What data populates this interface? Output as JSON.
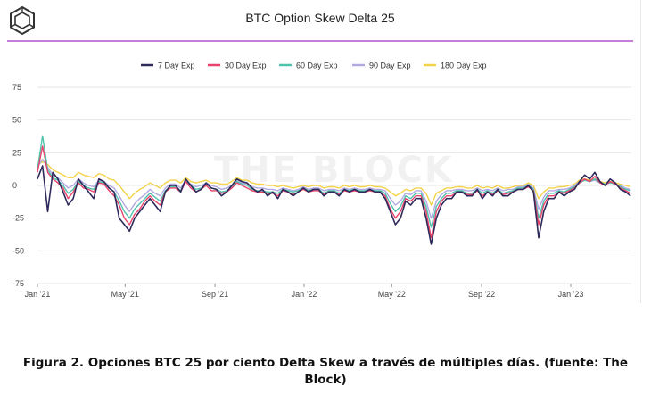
{
  "chart_data": {
    "type": "line",
    "title": "BTC Option Skew Delta 25",
    "watermark": "THE BLOCK",
    "xlabel": "",
    "ylabel": "",
    "ylim": [
      -75,
      75
    ],
    "yticks": [
      75,
      50,
      25,
      0,
      -25,
      -50,
      -75
    ],
    "x_ticks": [
      {
        "label": "Jan '21",
        "date": "2021-01-01"
      },
      {
        "label": "May '21",
        "date": "2021-05-01"
      },
      {
        "label": "Sep '21",
        "date": "2021-09-01"
      },
      {
        "label": "Jan '22",
        "date": "2022-01-01"
      },
      {
        "label": "May '22",
        "date": "2022-05-01"
      },
      {
        "label": "Sep '22",
        "date": "2022-09-01"
      },
      {
        "label": "Jan '23",
        "date": "2023-01-01"
      }
    ],
    "xlim": [
      "2021-01-01",
      "2023-03-25"
    ],
    "grid": true,
    "legend_position": "top",
    "x_dates": [
      "2021-01-01",
      "2021-01-08",
      "2021-01-15",
      "2021-01-22",
      "2021-01-29",
      "2021-02-05",
      "2021-02-12",
      "2021-02-19",
      "2021-02-26",
      "2021-03-05",
      "2021-03-12",
      "2021-03-19",
      "2021-03-26",
      "2021-04-02",
      "2021-04-09",
      "2021-04-16",
      "2021-04-23",
      "2021-04-30",
      "2021-05-07",
      "2021-05-14",
      "2021-05-21",
      "2021-05-28",
      "2021-06-04",
      "2021-06-11",
      "2021-06-18",
      "2021-06-25",
      "2021-07-02",
      "2021-07-09",
      "2021-07-16",
      "2021-07-23",
      "2021-07-30",
      "2021-08-06",
      "2021-08-13",
      "2021-08-20",
      "2021-08-27",
      "2021-09-03",
      "2021-09-10",
      "2021-09-17",
      "2021-09-24",
      "2021-10-01",
      "2021-10-08",
      "2021-10-15",
      "2021-10-22",
      "2021-10-29",
      "2021-11-05",
      "2021-11-12",
      "2021-11-19",
      "2021-11-26",
      "2021-12-03",
      "2021-12-10",
      "2021-12-17",
      "2021-12-24",
      "2021-12-31",
      "2022-01-07",
      "2022-01-14",
      "2022-01-21",
      "2022-01-28",
      "2022-02-04",
      "2022-02-11",
      "2022-02-18",
      "2022-02-25",
      "2022-03-04",
      "2022-03-11",
      "2022-03-18",
      "2022-03-25",
      "2022-04-01",
      "2022-04-08",
      "2022-04-15",
      "2022-04-22",
      "2022-04-29",
      "2022-05-06",
      "2022-05-13",
      "2022-05-20",
      "2022-05-27",
      "2022-06-03",
      "2022-06-10",
      "2022-06-17",
      "2022-06-24",
      "2022-07-01",
      "2022-07-08",
      "2022-07-15",
      "2022-07-22",
      "2022-07-29",
      "2022-08-05",
      "2022-08-12",
      "2022-08-19",
      "2022-08-26",
      "2022-09-02",
      "2022-09-09",
      "2022-09-16",
      "2022-09-23",
      "2022-09-30",
      "2022-10-07",
      "2022-10-14",
      "2022-10-21",
      "2022-10-28",
      "2022-11-04",
      "2022-11-11",
      "2022-11-18",
      "2022-11-25",
      "2022-12-02",
      "2022-12-09",
      "2022-12-16",
      "2022-12-23",
      "2022-12-30",
      "2023-01-06",
      "2023-01-13",
      "2023-01-20",
      "2023-01-27",
      "2023-02-03",
      "2023-02-10",
      "2023-02-17",
      "2023-02-24",
      "2023-03-03",
      "2023-03-10",
      "2023-03-17",
      "2023-03-24"
    ],
    "series": [
      {
        "name": "7 Day Exp",
        "color": "#2e2a5a",
        "values": [
          5,
          15,
          -20,
          10,
          5,
          -5,
          -15,
          -10,
          5,
          0,
          -5,
          -10,
          5,
          3,
          -2,
          -5,
          -25,
          -30,
          -35,
          -25,
          -20,
          -15,
          -10,
          -15,
          -20,
          -5,
          0,
          0,
          -5,
          5,
          0,
          -5,
          -3,
          2,
          -2,
          -3,
          -8,
          -5,
          0,
          5,
          3,
          2,
          -2,
          -5,
          -3,
          -8,
          -5,
          -10,
          -3,
          -5,
          -8,
          -5,
          -2,
          -5,
          -3,
          -3,
          -8,
          -5,
          -5,
          -8,
          -3,
          -5,
          -3,
          -5,
          -5,
          -3,
          -5,
          -5,
          -10,
          -20,
          -30,
          -25,
          -12,
          -15,
          -10,
          -10,
          -25,
          -45,
          -25,
          -15,
          -10,
          -10,
          -5,
          -5,
          -8,
          -8,
          -3,
          -10,
          -5,
          -8,
          -3,
          -8,
          -8,
          -5,
          -3,
          -3,
          0,
          -5,
          -40,
          -20,
          -10,
          -10,
          -5,
          -8,
          -5,
          -3,
          3,
          8,
          5,
          10,
          3,
          0,
          5,
          2,
          -3,
          -5,
          -8
        ]
      },
      {
        "name": "30 Day Exp",
        "color": "#e8436c",
        "values": [
          10,
          30,
          10,
          5,
          2,
          -2,
          -10,
          -5,
          2,
          -2,
          -3,
          -5,
          2,
          1,
          -4,
          -8,
          -15,
          -25,
          -30,
          -22,
          -18,
          -12,
          -8,
          -12,
          -15,
          -5,
          -2,
          -2,
          -5,
          3,
          -2,
          -5,
          -3,
          0,
          -4,
          -4,
          -6,
          -5,
          -2,
          2,
          0,
          -2,
          -4,
          -5,
          -5,
          -6,
          -6,
          -8,
          -4,
          -5,
          -7,
          -5,
          -3,
          -5,
          -4,
          -4,
          -7,
          -5,
          -5,
          -7,
          -4,
          -5,
          -4,
          -5,
          -5,
          -4,
          -5,
          -5,
          -8,
          -18,
          -25,
          -20,
          -10,
          -12,
          -8,
          -8,
          -20,
          -40,
          -20,
          -12,
          -8,
          -8,
          -5,
          -5,
          -7,
          -7,
          -4,
          -8,
          -5,
          -7,
          -4,
          -7,
          -6,
          -5,
          -3,
          -3,
          -1,
          -4,
          -30,
          -15,
          -8,
          -8,
          -5,
          -6,
          -4,
          -2,
          2,
          5,
          3,
          7,
          2,
          0,
          3,
          1,
          -2,
          -4,
          -6
        ]
      },
      {
        "name": "60 Day Exp",
        "color": "#4fc2ad",
        "values": [
          12,
          38,
          12,
          6,
          4,
          0,
          -6,
          -3,
          3,
          0,
          -2,
          -3,
          3,
          2,
          -2,
          -5,
          -12,
          -20,
          -25,
          -18,
          -14,
          -10,
          -6,
          -9,
          -12,
          -4,
          -1,
          -1,
          -4,
          3,
          0,
          -3,
          -2,
          1,
          -2,
          -3,
          -5,
          -4,
          -1,
          3,
          1,
          0,
          -3,
          -4,
          -4,
          -5,
          -5,
          -6,
          -3,
          -4,
          -5,
          -4,
          -2,
          -4,
          -3,
          -3,
          -6,
          -4,
          -4,
          -6,
          -3,
          -4,
          -3,
          -4,
          -4,
          -3,
          -4,
          -4,
          -6,
          -14,
          -20,
          -16,
          -8,
          -10,
          -6,
          -6,
          -16,
          -32,
          -16,
          -10,
          -6,
          -6,
          -4,
          -4,
          -6,
          -6,
          -3,
          -6,
          -4,
          -6,
          -3,
          -6,
          -5,
          -4,
          -2,
          -2,
          0,
          -3,
          -25,
          -12,
          -6,
          -6,
          -4,
          -5,
          -3,
          -1,
          2,
          4,
          3,
          5,
          2,
          1,
          2,
          1,
          -1,
          -3,
          -4
        ]
      },
      {
        "name": "90 Day Exp",
        "color": "#b1a9e0",
        "values": [
          14,
          20,
          14,
          8,
          6,
          2,
          -2,
          0,
          5,
          2,
          0,
          -1,
          4,
          3,
          0,
          -2,
          -8,
          -15,
          -20,
          -14,
          -10,
          -7,
          -3,
          -6,
          -8,
          -2,
          1,
          1,
          -2,
          4,
          1,
          -1,
          0,
          2,
          0,
          -1,
          -3,
          -2,
          0,
          4,
          2,
          1,
          -1,
          -2,
          -2,
          -3,
          -3,
          -4,
          -2,
          -3,
          -4,
          -3,
          -1,
          -3,
          -2,
          -2,
          -4,
          -3,
          -3,
          -4,
          -2,
          -3,
          -2,
          -3,
          -3,
          -2,
          -3,
          -3,
          -4,
          -10,
          -15,
          -12,
          -6,
          -7,
          -4,
          -4,
          -12,
          -25,
          -12,
          -7,
          -4,
          -4,
          -3,
          -3,
          -4,
          -4,
          -2,
          -4,
          -3,
          -4,
          -2,
          -4,
          -3,
          -3,
          -1,
          -1,
          1,
          -2,
          -18,
          -9,
          -4,
          -4,
          -3,
          -3,
          -2,
          0,
          3,
          4,
          3,
          4,
          2,
          1,
          2,
          1,
          0,
          -2,
          -3
        ]
      },
      {
        "name": "180 Day Exp",
        "color": "#f3d34a",
        "values": [
          16,
          18,
          16,
          12,
          10,
          8,
          6,
          6,
          10,
          8,
          7,
          6,
          9,
          8,
          5,
          4,
          0,
          -5,
          -10,
          -6,
          -3,
          -1,
          2,
          0,
          -2,
          2,
          4,
          4,
          2,
          6,
          3,
          2,
          3,
          4,
          2,
          2,
          1,
          1,
          3,
          6,
          4,
          4,
          2,
          1,
          1,
          0,
          0,
          -1,
          0,
          -1,
          -2,
          -1,
          0,
          -1,
          0,
          0,
          -2,
          -1,
          -1,
          -2,
          0,
          -1,
          0,
          -1,
          -1,
          0,
          -1,
          -1,
          -2,
          -5,
          -8,
          -6,
          -3,
          -4,
          -2,
          -2,
          -6,
          -15,
          -6,
          -4,
          -2,
          -2,
          -1,
          -1,
          -2,
          -2,
          0,
          -2,
          -1,
          -2,
          0,
          -2,
          -2,
          -1,
          0,
          0,
          2,
          0,
          -10,
          -5,
          -2,
          -2,
          -1,
          -1,
          0,
          1,
          4,
          5,
          4,
          5,
          3,
          2,
          3,
          2,
          1,
          0,
          -1
        ]
      }
    ]
  },
  "caption": "Figura 2. Opciones BTC 25 por ciento Delta Skew a través de múltiples días. (fuente: The Block)"
}
